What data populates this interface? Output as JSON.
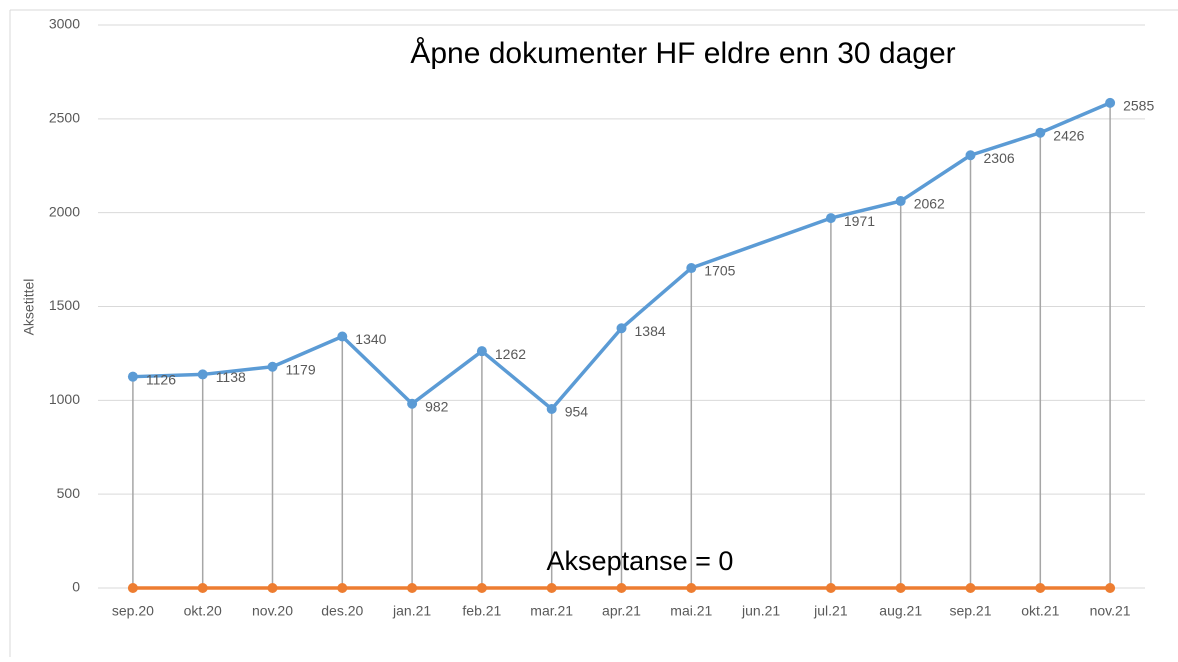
{
  "chart_data": {
    "type": "line",
    "title": "Åpne dokumenter HF eldre enn 30 dager",
    "y_label": "Aksetittel",
    "annotation": "Akseptanse = 0",
    "categories": [
      "sep.20",
      "okt.20",
      "nov.20",
      "des.20",
      "jan.21",
      "feb.21",
      "mar.21",
      "apr.21",
      "mai.21",
      "jun.21",
      "jul.21",
      "aug.21",
      "sep.21",
      "okt.21",
      "nov.21"
    ],
    "series": [
      {
        "color": "#5b9bd5",
        "values": [
          1126,
          1138,
          1179,
          1340,
          982,
          1262,
          954,
          1384,
          1705,
          null,
          1971,
          2062,
          2306,
          2426,
          2585
        ],
        "data_labels": true,
        "drop_lines": true
      },
      {
        "color": "#ed7d31",
        "values": [
          0,
          0,
          0,
          0,
          0,
          0,
          0,
          0,
          0,
          null,
          0,
          0,
          0,
          0,
          0
        ],
        "data_labels": false,
        "drop_lines": false
      }
    ],
    "connect_gaps": true,
    "ylim": [
      0,
      3000
    ],
    "yticks": [
      0,
      500,
      1000,
      1500,
      2000,
      2500,
      3000
    ],
    "grid": true
  }
}
